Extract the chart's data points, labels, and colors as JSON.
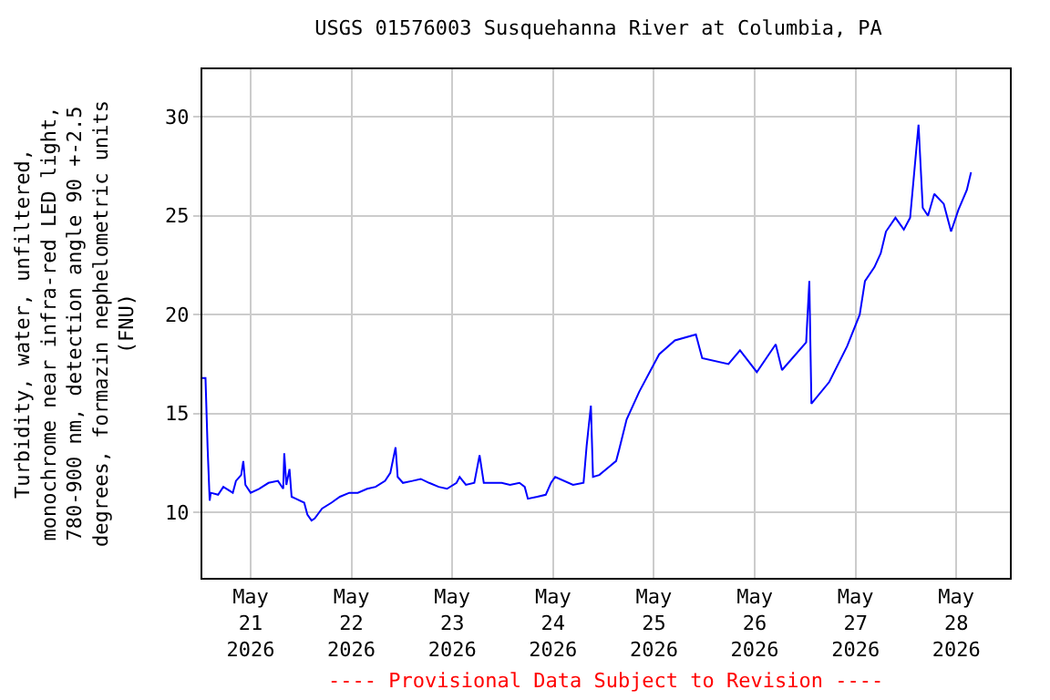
{
  "chart_data": {
    "type": "line",
    "title": "USGS 01576003 Susquehanna River at Columbia, PA",
    "ylabel": "Turbidity, water, unfiltered,\nmonochrome near infra-red LED light,\n780-900 nm, detection angle 90 +-2.5\ndegrees, formazin nephelometric units\n(FNU)",
    "annotations": [
      "---- Provisional Data Subject to Revision ----"
    ],
    "x": [
      "2026-05-20T12:30",
      "2026-05-20T13:15",
      "2026-05-20T13:45",
      "2026-05-20T14:15",
      "2026-05-20T14:30",
      "2026-05-20T16:15",
      "2026-05-20T17:30",
      "2026-05-20T19:45",
      "2026-05-20T20:30",
      "2026-05-20T21:45",
      "2026-05-20T22:15",
      "2026-05-20T22:45",
      "2026-05-21T00:00",
      "2026-05-21T02:00",
      "2026-05-21T04:15",
      "2026-05-21T06:30",
      "2026-05-21T07:45",
      "2026-05-21T08:00",
      "2026-05-21T08:30",
      "2026-05-21T09:15",
      "2026-05-21T09:45",
      "2026-05-21T10:45",
      "2026-05-21T12:45",
      "2026-05-21T13:30",
      "2026-05-21T14:30",
      "2026-05-21T15:15",
      "2026-05-21T17:00",
      "2026-05-21T19:15",
      "2026-05-21T21:15",
      "2026-05-21T23:30",
      "2026-05-22T01:30",
      "2026-05-22T03:45",
      "2026-05-22T05:45",
      "2026-05-22T08:00",
      "2026-05-22T09:15",
      "2026-05-22T10:30",
      "2026-05-22T11:00",
      "2026-05-22T12:15",
      "2026-05-22T14:30",
      "2026-05-22T16:30",
      "2026-05-22T18:30",
      "2026-05-22T20:45",
      "2026-05-22T22:45",
      "2026-05-23T01:00",
      "2026-05-23T01:45",
      "2026-05-23T03:15",
      "2026-05-23T05:15",
      "2026-05-23T06:30",
      "2026-05-23T07:30",
      "2026-05-23T09:30",
      "2026-05-23T11:45",
      "2026-05-23T13:45",
      "2026-05-23T16:00",
      "2026-05-23T17:15",
      "2026-05-23T18:00",
      "2026-05-23T20:15",
      "2026-05-23T22:15",
      "2026-05-23T23:30",
      "2026-05-24T00:30",
      "2026-05-24T04:45",
      "2026-05-24T07:15",
      "2026-05-24T08:00",
      "2026-05-24T09:00",
      "2026-05-24T09:30",
      "2026-05-24T11:00",
      "2026-05-24T13:15",
      "2026-05-24T15:00",
      "2026-05-24T15:45",
      "2026-05-24T17:30",
      "2026-05-24T20:30",
      "2026-05-25T01:15",
      "2026-05-25T05:00",
      "2026-05-25T10:00",
      "2026-05-25T11:30",
      "2026-05-25T17:45",
      "2026-05-25T20:30",
      "2026-05-26T00:30",
      "2026-05-26T05:00",
      "2026-05-26T06:30",
      "2026-05-26T12:15",
      "2026-05-26T13:00",
      "2026-05-26T13:30",
      "2026-05-26T17:45",
      "2026-05-26T22:00",
      "2026-05-27T01:00",
      "2026-05-27T02:15",
      "2026-05-27T04:30",
      "2026-05-27T06:00",
      "2026-05-27T07:15",
      "2026-05-27T09:30",
      "2026-05-27T11:30",
      "2026-05-27T13:00",
      "2026-05-27T15:00",
      "2026-05-27T16:00",
      "2026-05-27T17:15",
      "2026-05-27T18:45",
      "2026-05-27T21:00",
      "2026-05-27T22:45",
      "2026-05-28T00:30",
      "2026-05-28T02:30",
      "2026-05-28T03:30"
    ],
    "series": [
      {
        "color": "#0000ff",
        "values": [
          16.8,
          16.8,
          13.3,
          10.6,
          11.0,
          10.9,
          11.3,
          11.0,
          11.6,
          11.9,
          12.6,
          11.4,
          11.0,
          11.2,
          11.5,
          11.6,
          11.2,
          13.0,
          11.4,
          12.2,
          10.8,
          10.7,
          10.5,
          9.9,
          9.6,
          9.7,
          10.2,
          10.5,
          10.8,
          11.0,
          11.0,
          11.2,
          11.3,
          11.6,
          12.0,
          13.3,
          11.8,
          11.5,
          11.6,
          11.7,
          11.5,
          11.3,
          11.2,
          11.5,
          11.8,
          11.4,
          11.5,
          12.9,
          11.5,
          11.5,
          11.5,
          11.4,
          11.5,
          11.3,
          10.7,
          10.8,
          10.9,
          11.5,
          11.8,
          11.4,
          11.5,
          13.4,
          15.4,
          11.8,
          11.9,
          12.3,
          12.6,
          13.2,
          14.7,
          16.1,
          18.0,
          18.7,
          19.0,
          17.8,
          17.5,
          18.2,
          17.1,
          18.5,
          17.2,
          18.6,
          21.7,
          15.5,
          16.6,
          18.4,
          20.0,
          21.7,
          22.4,
          23.1,
          24.2,
          24.9,
          24.3,
          24.9,
          29.6,
          25.4,
          25.0,
          26.1,
          25.6,
          24.2,
          25.3,
          26.3,
          27.2
        ]
      }
    ],
    "xlim": [
      "2026-05-20T12:30",
      "2026-05-28T12:45"
    ],
    "xticks": [
      {
        "value": "2026-05-21",
        "label": "May\n21\n2026"
      },
      {
        "value": "2026-05-22",
        "label": "May\n22\n2026"
      },
      {
        "value": "2026-05-23",
        "label": "May\n23\n2026"
      },
      {
        "value": "2026-05-24",
        "label": "May\n24\n2026"
      },
      {
        "value": "2026-05-25",
        "label": "May\n25\n2026"
      },
      {
        "value": "2026-05-26",
        "label": "May\n26\n2026"
      },
      {
        "value": "2026-05-27",
        "label": "May\n27\n2026"
      },
      {
        "value": "2026-05-28",
        "label": "May\n28\n2026"
      }
    ],
    "ylim": [
      6.7,
      32.4
    ],
    "yticks": [
      10,
      15,
      20,
      25,
      30
    ],
    "grid": true,
    "legend": false,
    "marker": "none",
    "line_style": "solid"
  }
}
